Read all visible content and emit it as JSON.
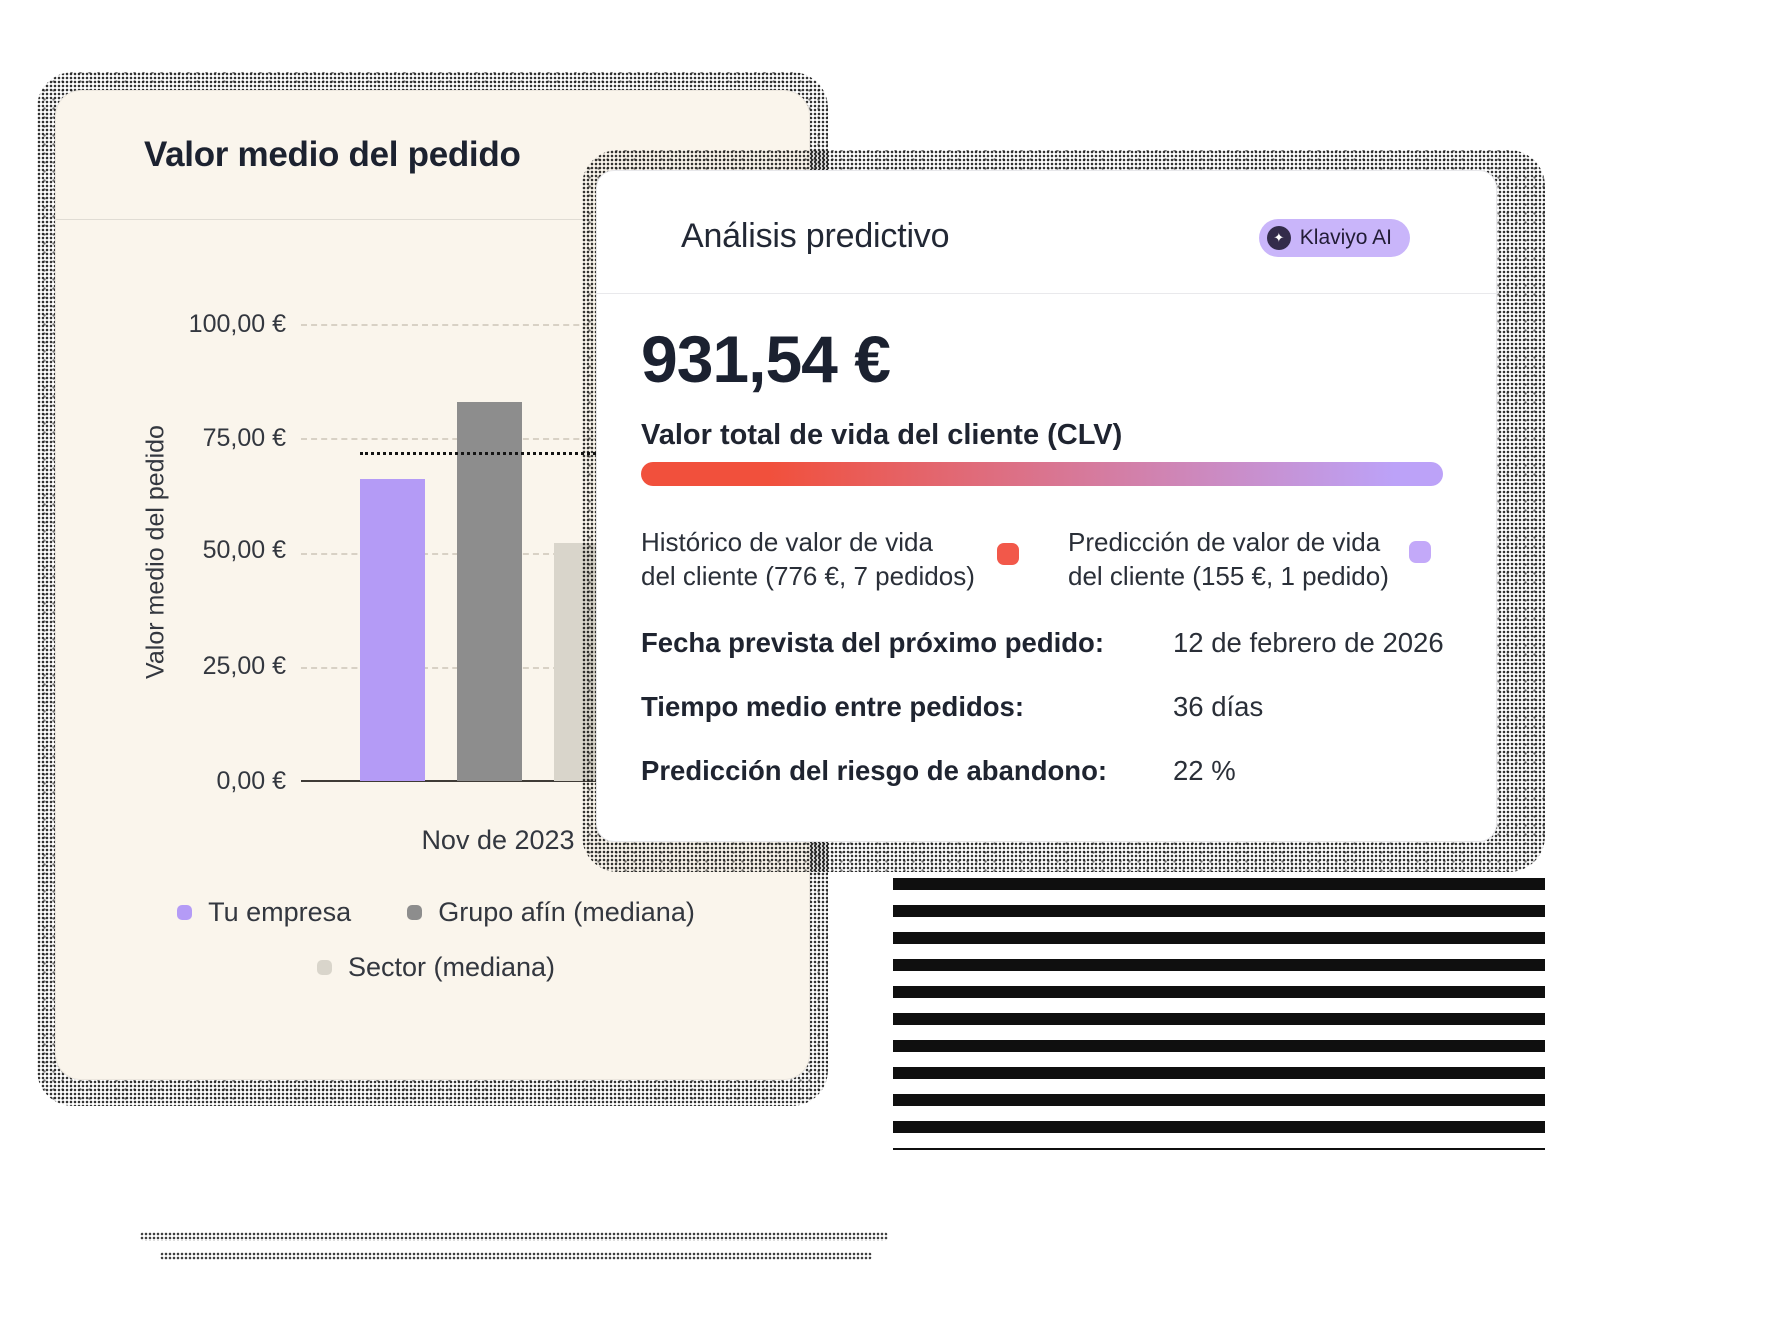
{
  "aov_card": {
    "title": "Valor medio del pedido",
    "x_axis_tick": "Nov de 2023"
  },
  "chart_data": {
    "type": "bar",
    "title": "Valor medio del pedido",
    "ylabel": "Valor medio del pedido",
    "categories": [
      "Nov de 2023"
    ],
    "series": [
      {
        "name": "Tu empresa",
        "values": [
          66
        ],
        "color": "#B49BF6"
      },
      {
        "name": "Grupo afín (mediana)",
        "values": [
          83
        ],
        "color": "#8D8D8D"
      },
      {
        "name": "Sector (mediana)",
        "values": [
          52
        ],
        "color": "#D9D5CB"
      }
    ],
    "benchmark_value": 72,
    "ylim": [
      0,
      100
    ],
    "ytick_labels": [
      "0,00 €",
      "25,00 €",
      "50,00 €",
      "75,00 €",
      "100,00 €"
    ],
    "grid": "dashed-horizontal",
    "legend_position": "bottom"
  },
  "predictive_card": {
    "title": "Análisis predictivo",
    "badge_label": "Klaviyo AI",
    "badge_color": "#C9B5FA",
    "clv_value": "931,54 €",
    "clv_label": "Valor total de vida del cliente (CLV)",
    "gradient": [
      "#F1503C",
      "#BCA2F8"
    ],
    "legend": [
      {
        "line1": "Histórico de valor de vida",
        "line2": "del cliente (776 €, 7 pedidos)",
        "color": "#F2584A"
      },
      {
        "line1": "Predicción de valor de vida",
        "line2": "del cliente (155 €, 1 pedido)",
        "color": "#C3A9F9"
      }
    ],
    "rows": [
      {
        "label": "Fecha prevista del próximo pedido:",
        "value": "12 de febrero de 2026"
      },
      {
        "label": "Tiempo medio entre pedidos:",
        "value": "36 días"
      },
      {
        "label": "Predicción del riesgo de abandono:",
        "value": "22 %"
      }
    ]
  }
}
